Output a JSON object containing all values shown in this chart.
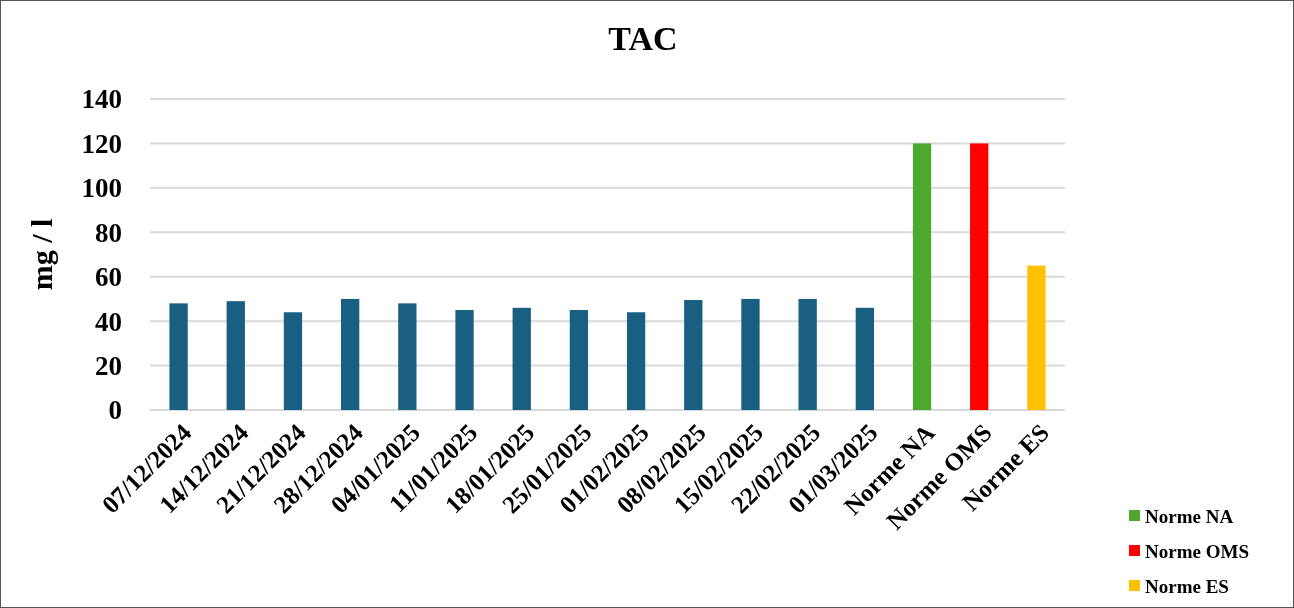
{
  "chart_data": {
    "type": "bar",
    "title": "TAC",
    "ylabel": "mg / l",
    "categories": [
      "07/12/2024",
      "14/12/2024",
      "21/12/2024",
      "28/12/2024",
      "04/01/2025",
      "11/01/2025",
      "18/01/2025",
      "25/01/2025",
      "01/02/2025",
      "08/02/2025",
      "15/02/2025",
      "22/02/2025",
      "01/03/2025",
      "Norme NA",
      "Norme OMS",
      "Norme ES"
    ],
    "series": [
      {
        "color": "#185f82",
        "values": [
          48,
          49,
          44,
          50,
          48,
          45,
          46,
          45,
          44,
          49.5,
          50,
          50,
          46,
          null,
          null,
          null
        ]
      },
      {
        "name": "Norme NA",
        "color": "#4ea72e",
        "values": [
          null,
          null,
          null,
          null,
          null,
          null,
          null,
          null,
          null,
          null,
          null,
          null,
          null,
          120,
          null,
          null
        ]
      },
      {
        "name": "Norme OMS",
        "color": "#ff0000",
        "values": [
          null,
          null,
          null,
          null,
          null,
          null,
          null,
          null,
          null,
          null,
          null,
          null,
          null,
          null,
          120,
          null
        ]
      },
      {
        "name": "Norme ES",
        "color": "#ffc000",
        "values": [
          null,
          null,
          null,
          null,
          null,
          null,
          null,
          null,
          null,
          null,
          null,
          null,
          null,
          null,
          null,
          65
        ]
      }
    ],
    "ylim": [
      0,
      140
    ],
    "yticks": [
      0,
      20,
      40,
      60,
      80,
      100,
      120,
      140
    ],
    "grid": "y",
    "legend": "bottom right"
  }
}
